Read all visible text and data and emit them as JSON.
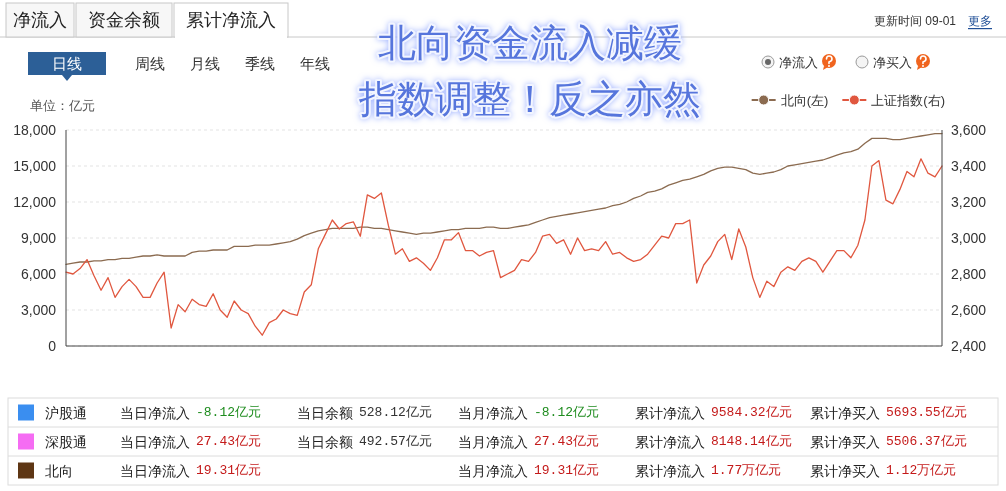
{
  "chart_data": {
    "type": "line",
    "title": "北向资金流入减缓",
    "subtitle": "指数调整！反之亦然",
    "ylabel": "单位：亿元",
    "categories": [
      null,
      null,
      null,
      null,
      null,
      null,
      null,
      null,
      null,
      null,
      null,
      null,
      null,
      null,
      null,
      null,
      null,
      null,
      null,
      null,
      null,
      null,
      null,
      null,
      null,
      null,
      null,
      null,
      null,
      null,
      null,
      null,
      null,
      null,
      null,
      null,
      null,
      null,
      null,
      null,
      null,
      null,
      null,
      null,
      null,
      null,
      null,
      null,
      null,
      null,
      null,
      null,
      null,
      null,
      null,
      null,
      null,
      null,
      null,
      null,
      null,
      null,
      null,
      null,
      null,
      null,
      null,
      null,
      null,
      null,
      null,
      null,
      null,
      null,
      null,
      null,
      null,
      null,
      null,
      null,
      null,
      null,
      null,
      null,
      null,
      null,
      null,
      null,
      null,
      null,
      null,
      null,
      null,
      null,
      null,
      null,
      null,
      null,
      null,
      null,
      null,
      null,
      null,
      null,
      null,
      null,
      null,
      null,
      null,
      null,
      null,
      null,
      null,
      null,
      null,
      null,
      null,
      null,
      null,
      null,
      null,
      null,
      null,
      null,
      null,
      null
    ],
    "series": [
      {
        "name": "北向(左)",
        "color": "#8b6b50",
        "values": [
          6800,
          6900,
          7000,
          7000,
          7100,
          7100,
          7200,
          7200,
          7300,
          7300,
          7400,
          7500,
          7500,
          7600,
          7500,
          7500,
          7500,
          7500,
          7800,
          7900,
          7900,
          8000,
          8000,
          8000,
          8300,
          8300,
          8300,
          8400,
          8400,
          8400,
          8500,
          8600,
          8700,
          8900,
          9200,
          9400,
          9600,
          9700,
          9800,
          9800,
          9800,
          9800,
          9900,
          9900,
          9800,
          9800,
          9700,
          9600,
          9500,
          9400,
          9300,
          9400,
          9400,
          9500,
          9600,
          9700,
          9700,
          9800,
          9800,
          9800,
          9900,
          9900,
          9800,
          9800,
          9900,
          10000,
          10100,
          10300,
          10500,
          10700,
          10800,
          10900,
          11000,
          11100,
          11200,
          11300,
          11400,
          11500,
          11700,
          11800,
          12000,
          12300,
          12500,
          12800,
          12900,
          13100,
          13400,
          13600,
          13800,
          13900,
          14100,
          14300,
          14600,
          14800,
          14900,
          14900,
          14800,
          14700,
          14400,
          14300,
          14400,
          14500,
          14700,
          15000,
          15100,
          15200,
          15300,
          15400,
          15500,
          15700,
          15900,
          16100,
          16200,
          16400,
          16900,
          17300,
          17300,
          17300,
          17200,
          17200,
          17300,
          17400,
          17500,
          17600,
          17700,
          17700
        ]
      },
      {
        "name": "上证指数(右)",
        "color": "#e0573f",
        "axis": "y2",
        "values": [
          2810,
          2800,
          2830,
          2880,
          2790,
          2710,
          2780,
          2670,
          2730,
          2770,
          2730,
          2670,
          2670,
          2750,
          2810,
          2500,
          2630,
          2590,
          2660,
          2630,
          2620,
          2690,
          2600,
          2560,
          2650,
          2600,
          2580,
          2510,
          2460,
          2530,
          2550,
          2600,
          2580,
          2570,
          2700,
          2740,
          2940,
          3020,
          3100,
          3050,
          3080,
          3090,
          3010,
          3240,
          3220,
          3250,
          3070,
          2910,
          2940,
          2870,
          2890,
          2860,
          2820,
          2890,
          2990,
          2990,
          3030,
          2930,
          2930,
          2900,
          2920,
          2930,
          2780,
          2800,
          2820,
          2880,
          2870,
          2920,
          3010,
          3020,
          2970,
          2990,
          2910,
          3000,
          2930,
          2940,
          2930,
          2980,
          2910,
          2920,
          2890,
          2870,
          2880,
          2910,
          2960,
          3010,
          3000,
          3080,
          3080,
          3100,
          2750,
          2850,
          2900,
          2980,
          3020,
          2880,
          3050,
          2950,
          2780,
          2670,
          2760,
          2730,
          2810,
          2840,
          2820,
          2870,
          2890,
          2870,
          2810,
          2870,
          2930,
          2930,
          2890,
          2960,
          3100,
          3400,
          3430,
          3210,
          3190,
          3270,
          3370,
          3340,
          3440,
          3360,
          3340,
          3400
        ]
      }
    ],
    "ylim": [
      0,
      18000
    ],
    "yticks": [
      0,
      {
        "value": 3000,
        "label": "3,000"
      },
      {
        "value": 6000,
        "label": "6,000"
      },
      {
        "value": 9000,
        "label": "9,000"
      },
      {
        "value": 12000,
        "label": "12,000"
      },
      {
        "value": 15000,
        "label": "15,000"
      },
      {
        "value": 18000,
        "label": "18,000"
      }
    ],
    "y2lim": [
      2400,
      3600
    ],
    "y2ticks": [
      {
        "value": 2400,
        "label": "2,400"
      },
      {
        "value": 2600,
        "label": "2,600"
      },
      {
        "value": 2800,
        "label": "2,800"
      },
      {
        "value": 3000,
        "label": "3,000"
      },
      {
        "value": 3200,
        "label": "3,200"
      },
      {
        "value": 3400,
        "label": "3,400"
      },
      {
        "value": 3600,
        "label": "3,600"
      }
    ],
    "grid": "y",
    "legend": "top right",
    "annotations": [
      "净流入",
      "资金余额",
      "累计净流入",
      "更新时间 09-01",
      "更多",
      "日线",
      "周线",
      "月线",
      "季线",
      "年线",
      "净流入",
      "净买入",
      "沪股通",
      "当日净流入 -8.12亿元",
      "当日余额 528.12亿元",
      "当月净流入 -8.12亿元",
      "累计净流入 9584.32亿元",
      "累计净买入 5693.55亿元",
      "深股通",
      "当日净流入 27.43亿元",
      "当日余额 492.57亿元",
      "当月净流入 27.43亿元",
      "累计净流入 8148.14亿元",
      "累计净买入 5506.37亿元",
      "北向",
      "当日净流入 19.31亿元",
      "当月净流入 19.31亿元",
      "累计净流入 1.77万亿元",
      "累计净买入 1.12万亿元"
    ]
  }
}
